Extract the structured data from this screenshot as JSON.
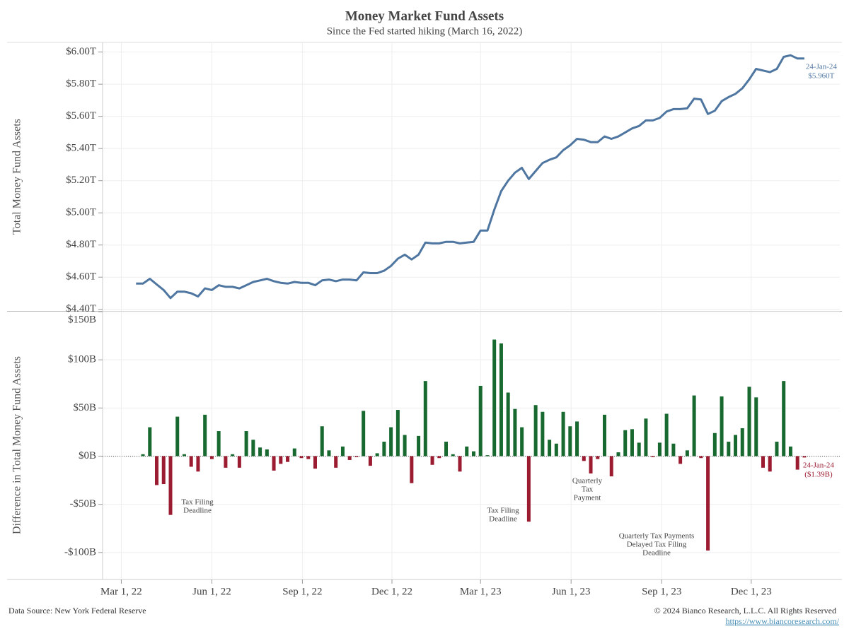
{
  "chart_data": [
    {
      "type": "line",
      "title": "Money Market Fund Assets",
      "subtitle": "Since the Fed started hiking (March 16, 2022)",
      "y_label": "Total Money Fund Assets",
      "color": "#4e76a0",
      "grid": true,
      "xlim": [
        "2022-02-10",
        "2024-02-29"
      ],
      "ylim": [
        4.39,
        6.06
      ],
      "yticks": [
        {
          "value": 4.4,
          "label": "$4.40T"
        },
        {
          "value": 4.6,
          "label": "$4.60T"
        },
        {
          "value": 4.8,
          "label": "$4.80T"
        },
        {
          "value": 5.0,
          "label": "$5.00T"
        },
        {
          "value": 5.2,
          "label": "$5.20T"
        },
        {
          "value": 5.4,
          "label": "$5.40T"
        },
        {
          "value": 5.6,
          "label": "$5.60T"
        },
        {
          "value": 5.8,
          "label": "$5.80T"
        },
        {
          "value": 6.0,
          "label": "$6.00T"
        }
      ],
      "x": [
        "2022-03-16",
        "2022-03-23",
        "2022-03-30",
        "2022-04-06",
        "2022-04-13",
        "2022-04-20",
        "2022-04-27",
        "2022-05-04",
        "2022-05-11",
        "2022-05-18",
        "2022-05-25",
        "2022-06-01",
        "2022-06-08",
        "2022-06-15",
        "2022-06-22",
        "2022-06-29",
        "2022-07-06",
        "2022-07-13",
        "2022-07-20",
        "2022-07-27",
        "2022-08-03",
        "2022-08-10",
        "2022-08-17",
        "2022-08-24",
        "2022-08-31",
        "2022-09-07",
        "2022-09-14",
        "2022-09-21",
        "2022-09-28",
        "2022-10-05",
        "2022-10-12",
        "2022-10-19",
        "2022-10-26",
        "2022-11-02",
        "2022-11-09",
        "2022-11-16",
        "2022-11-23",
        "2022-11-30",
        "2022-12-07",
        "2022-12-14",
        "2022-12-21",
        "2022-12-28",
        "2023-01-04",
        "2023-01-11",
        "2023-01-18",
        "2023-01-25",
        "2023-02-01",
        "2023-02-08",
        "2023-02-15",
        "2023-02-22",
        "2023-03-01",
        "2023-03-08",
        "2023-03-15",
        "2023-03-22",
        "2023-03-29",
        "2023-04-05",
        "2023-04-12",
        "2023-04-19",
        "2023-04-26",
        "2023-05-03",
        "2023-05-10",
        "2023-05-17",
        "2023-05-24",
        "2023-05-31",
        "2023-06-07",
        "2023-06-14",
        "2023-06-21",
        "2023-06-28",
        "2023-07-05",
        "2023-07-12",
        "2023-07-19",
        "2023-07-26",
        "2023-08-02",
        "2023-08-09",
        "2023-08-16",
        "2023-08-23",
        "2023-08-30",
        "2023-09-06",
        "2023-09-13",
        "2023-09-20",
        "2023-09-27",
        "2023-10-04",
        "2023-10-11",
        "2023-10-18",
        "2023-10-25",
        "2023-11-01",
        "2023-11-08",
        "2023-11-15",
        "2023-11-22",
        "2023-11-29",
        "2023-12-06",
        "2023-12-13",
        "2023-12-20",
        "2023-12-27",
        "2024-01-03",
        "2024-01-10",
        "2024-01-17",
        "2024-01-24"
      ],
      "values": [
        4.56,
        4.56,
        4.59,
        4.555,
        4.52,
        4.47,
        4.51,
        4.51,
        4.5,
        4.48,
        4.53,
        4.52,
        4.55,
        4.54,
        4.54,
        4.53,
        4.55,
        4.57,
        4.58,
        4.59,
        4.575,
        4.565,
        4.56,
        4.57,
        4.565,
        4.565,
        4.55,
        4.58,
        4.585,
        4.575,
        4.585,
        4.585,
        4.58,
        4.63,
        4.625,
        4.625,
        4.64,
        4.67,
        4.715,
        4.74,
        4.71,
        4.74,
        4.815,
        4.81,
        4.81,
        4.82,
        4.82,
        4.81,
        4.815,
        4.82,
        4.89,
        4.89,
        5.02,
        5.135,
        5.2,
        5.25,
        5.28,
        5.21,
        5.26,
        5.31,
        5.33,
        5.345,
        5.39,
        5.42,
        5.46,
        5.455,
        5.44,
        5.44,
        5.475,
        5.46,
        5.475,
        5.5,
        5.525,
        5.54,
        5.575,
        5.575,
        5.59,
        5.63,
        5.645,
        5.645,
        5.65,
        5.71,
        5.705,
        5.615,
        5.635,
        5.695,
        5.72,
        5.74,
        5.775,
        5.83,
        5.895,
        5.885,
        5.875,
        5.895,
        5.97,
        5.98,
        5.96,
        5.96
      ],
      "end_label": [
        "24-Jan-24",
        "$5.960T"
      ]
    },
    {
      "type": "bar",
      "y_label": "Difference in Total Money Fund Assets",
      "positive_color": "#17692f",
      "negative_color": "#9b1b30",
      "grid": true,
      "xlim": [
        "2022-02-10",
        "2024-02-29"
      ],
      "xticks": [
        {
          "value": "2022-03-01",
          "label": "Mar 1, 22"
        },
        {
          "value": "2022-06-01",
          "label": "Jun 1, 22"
        },
        {
          "value": "2022-09-01",
          "label": "Sep 1, 22"
        },
        {
          "value": "2022-12-01",
          "label": "Dec 1, 22"
        },
        {
          "value": "2023-03-01",
          "label": "Mar 1, 23"
        },
        {
          "value": "2023-06-01",
          "label": "Jun 1, 23"
        },
        {
          "value": "2023-09-01",
          "label": "Sep 1, 23"
        },
        {
          "value": "2023-12-01",
          "label": "Dec 1, 23"
        }
      ],
      "ylim": [
        -128,
        150
      ],
      "yticks": [
        {
          "value": -100,
          "label": "-$100B"
        },
        {
          "value": -50,
          "label": "-$50B"
        },
        {
          "value": 0,
          "label": "$0B"
        },
        {
          "value": 50,
          "label": "$50B"
        },
        {
          "value": 100,
          "label": "$100B"
        },
        {
          "value": 150,
          "label": "$150B"
        }
      ],
      "x": [
        "2022-03-16",
        "2022-03-23",
        "2022-03-30",
        "2022-04-06",
        "2022-04-13",
        "2022-04-20",
        "2022-04-27",
        "2022-05-04",
        "2022-05-11",
        "2022-05-18",
        "2022-05-25",
        "2022-06-01",
        "2022-06-08",
        "2022-06-15",
        "2022-06-22",
        "2022-06-29",
        "2022-07-06",
        "2022-07-13",
        "2022-07-20",
        "2022-07-27",
        "2022-08-03",
        "2022-08-10",
        "2022-08-17",
        "2022-08-24",
        "2022-08-31",
        "2022-09-07",
        "2022-09-14",
        "2022-09-21",
        "2022-09-28",
        "2022-10-05",
        "2022-10-12",
        "2022-10-19",
        "2022-10-26",
        "2022-11-02",
        "2022-11-09",
        "2022-11-16",
        "2022-11-23",
        "2022-11-30",
        "2022-12-07",
        "2022-12-14",
        "2022-12-21",
        "2022-12-28",
        "2023-01-04",
        "2023-01-11",
        "2023-01-18",
        "2023-01-25",
        "2023-02-01",
        "2023-02-08",
        "2023-02-15",
        "2023-02-22",
        "2023-03-01",
        "2023-03-08",
        "2023-03-15",
        "2023-03-22",
        "2023-03-29",
        "2023-04-05",
        "2023-04-12",
        "2023-04-19",
        "2023-04-26",
        "2023-05-03",
        "2023-05-10",
        "2023-05-17",
        "2023-05-24",
        "2023-05-31",
        "2023-06-07",
        "2023-06-14",
        "2023-06-21",
        "2023-06-28",
        "2023-07-05",
        "2023-07-12",
        "2023-07-19",
        "2023-07-26",
        "2023-08-02",
        "2023-08-09",
        "2023-08-16",
        "2023-08-23",
        "2023-08-30",
        "2023-09-06",
        "2023-09-13",
        "2023-09-20",
        "2023-09-27",
        "2023-10-04",
        "2023-10-11",
        "2023-10-18",
        "2023-10-25",
        "2023-11-01",
        "2023-11-08",
        "2023-11-15",
        "2023-11-22",
        "2023-11-29",
        "2023-12-06",
        "2023-12-13",
        "2023-12-20",
        "2023-12-27",
        "2024-01-03",
        "2024-01-10",
        "2024-01-17",
        "2024-01-24"
      ],
      "values": [
        null,
        2,
        30,
        -30,
        -29,
        -61,
        41,
        2,
        -11,
        -16,
        43,
        -3,
        26,
        -12,
        2,
        -12,
        26,
        17,
        9,
        7,
        -15,
        -8,
        -6,
        8,
        -2,
        -3,
        -13,
        31,
        6,
        -12,
        10,
        -4,
        -1,
        47,
        -10,
        3,
        15,
        30,
        48,
        22,
        -28,
        21,
        78,
        -9,
        -2,
        15,
        2,
        -16,
        10,
        5,
        73,
        1,
        121,
        117,
        66,
        49,
        30,
        -68,
        53,
        46,
        17,
        13,
        46,
        31,
        36,
        -5,
        -18,
        -3,
        43,
        -21,
        4,
        27,
        28,
        14,
        39,
        -1,
        14,
        44,
        13,
        -8,
        6,
        63,
        -2,
        -98,
        24,
        62,
        15,
        22,
        29,
        72,
        61,
        -12,
        -16,
        15,
        78,
        10,
        -14,
        -1.39
      ],
      "annotations": [
        {
          "lines": [
            "Tax Filing",
            "Deadline"
          ]
        },
        {
          "lines": [
            "Tax Filing",
            "Deadline"
          ]
        },
        {
          "lines": [
            "Quarterly",
            "Tax",
            "Payment"
          ]
        },
        {
          "lines": [
            "Quarterly Tax Payments",
            "Delayed Tax Filing",
            "Deadline"
          ]
        }
      ],
      "end_label": [
        "24-Jan-24",
        "($1.39B)"
      ]
    }
  ],
  "footer": {
    "source": "Data Source: New York Federal Reserve",
    "copyright": "© 2024 Bianco Research, L.L.C. All Rights Reserved",
    "url": "https://www.biancoresearch.com/"
  }
}
